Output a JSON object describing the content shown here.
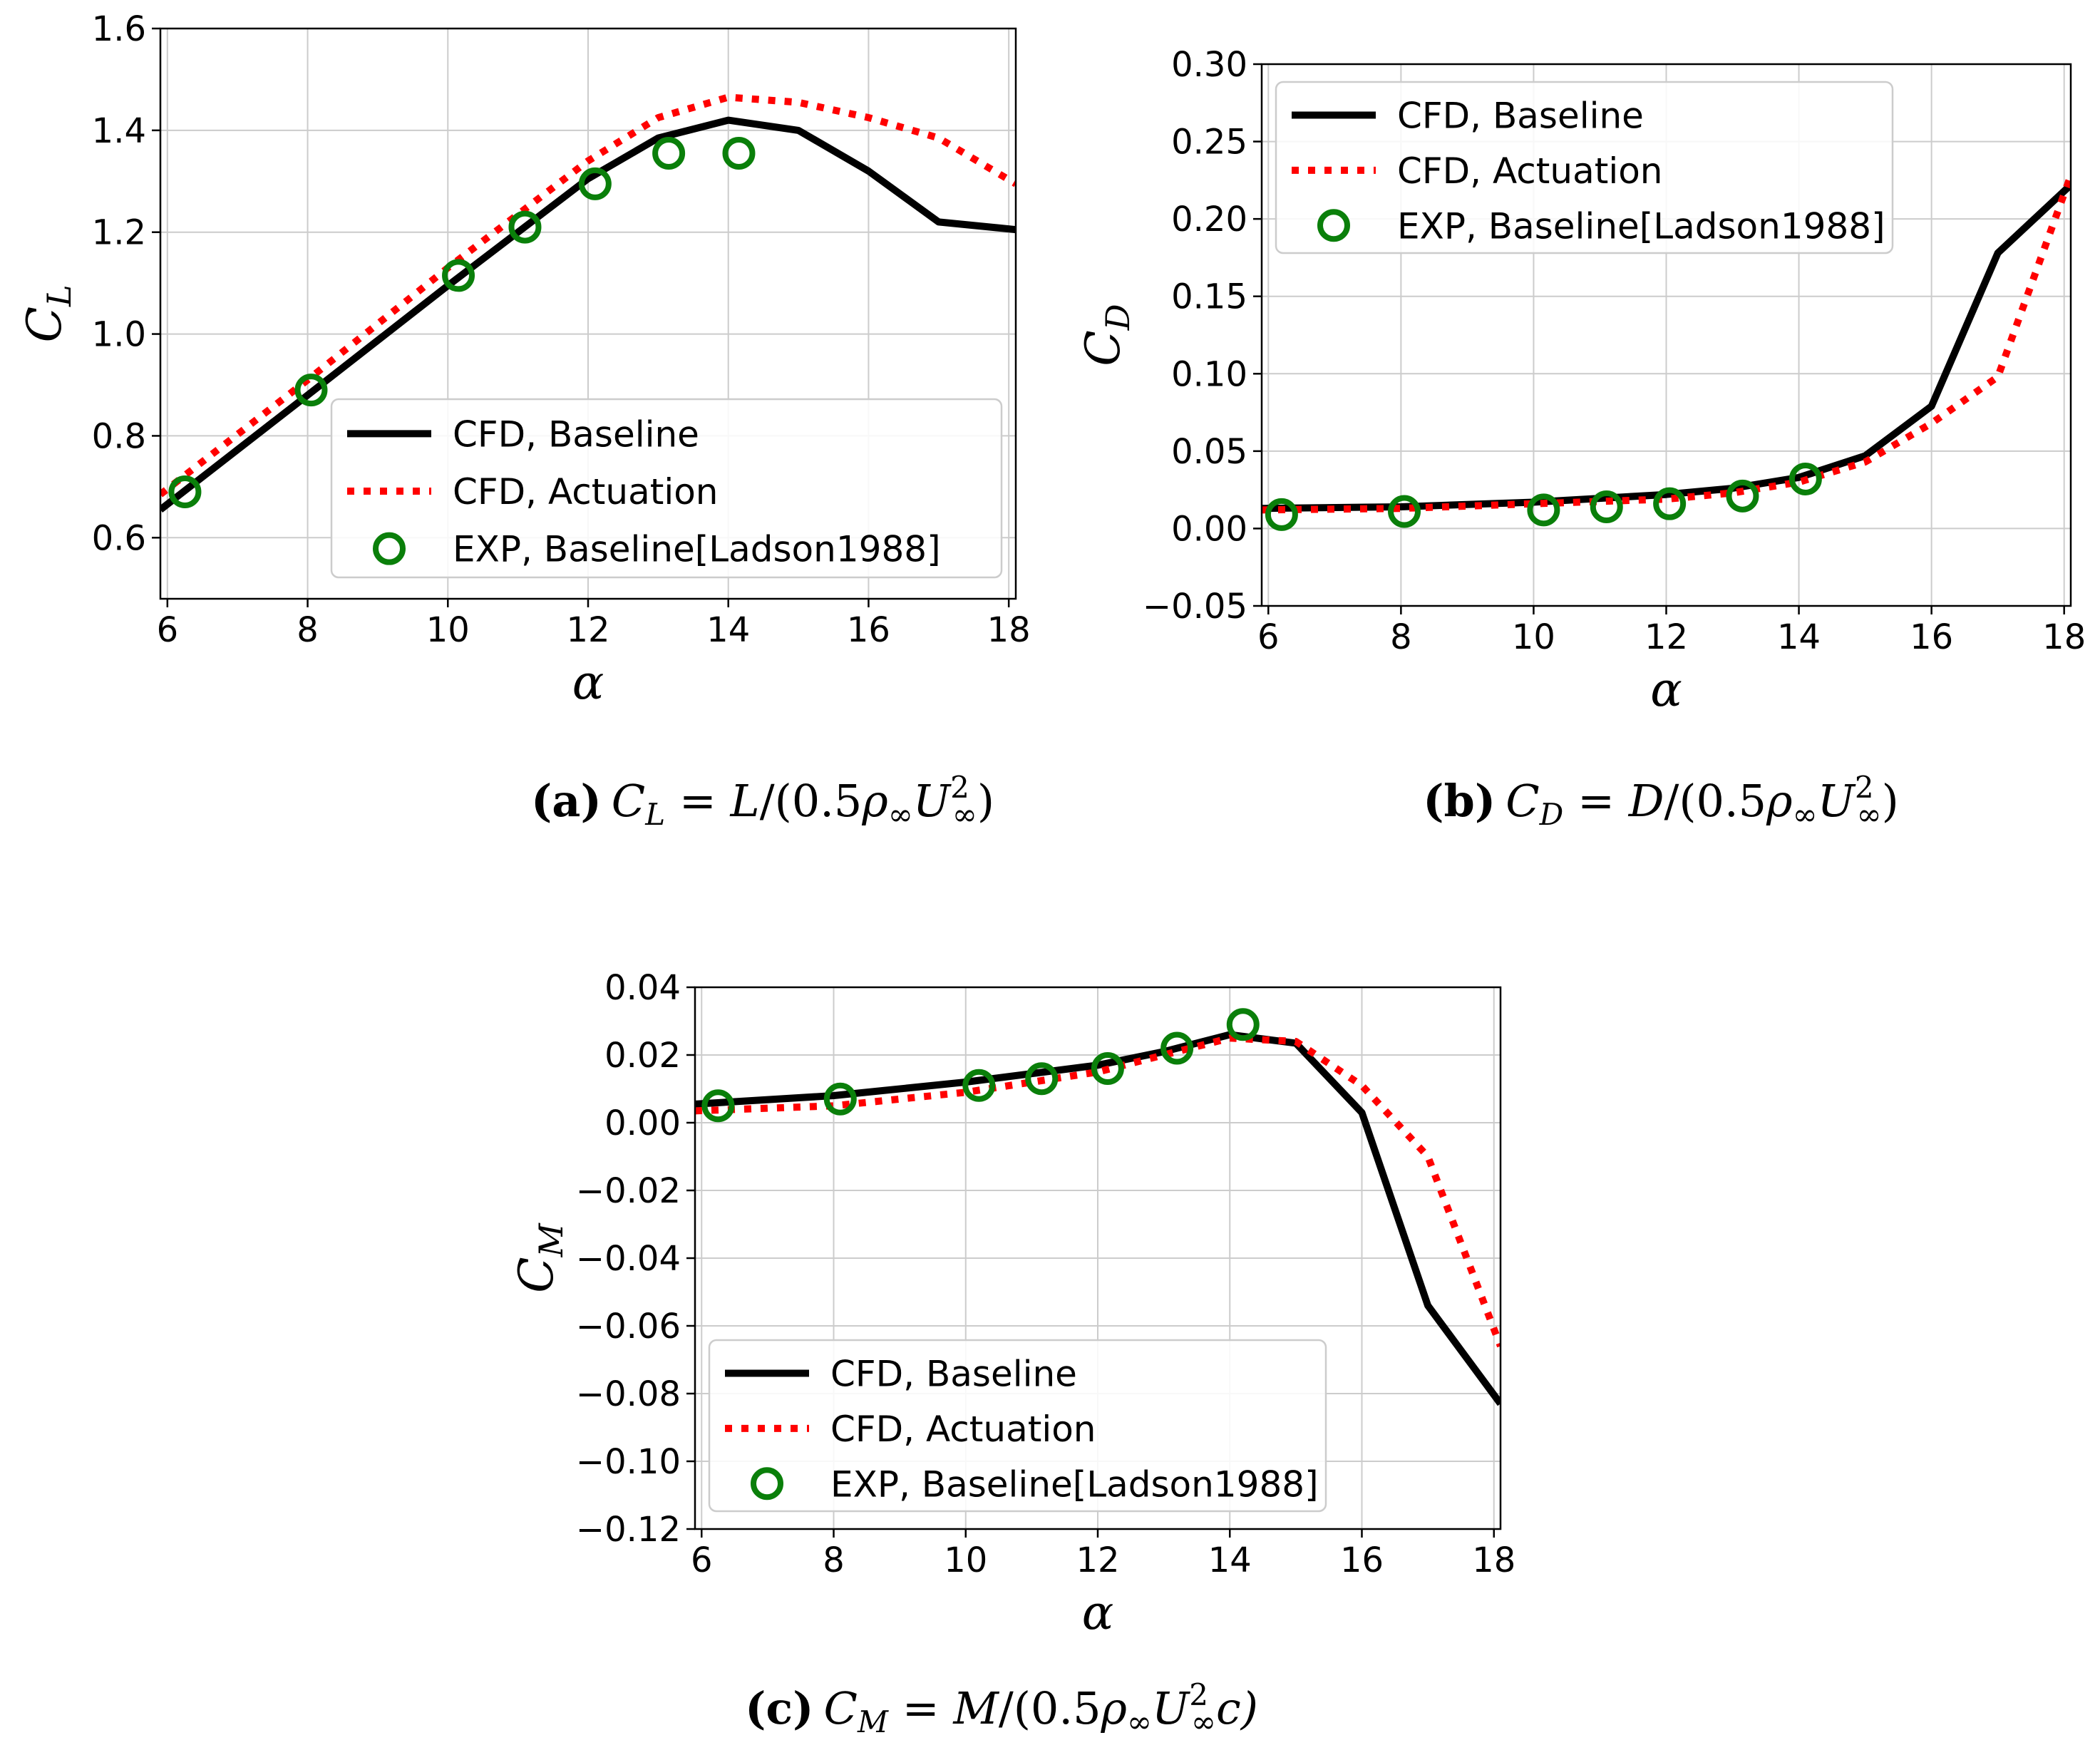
{
  "colors": {
    "baseline": "#000000",
    "actuation": "#ff0000",
    "experiment": "#0a7f0a",
    "grid": "#cccccc"
  },
  "chart_data": [
    {
      "id": "cl",
      "type": "line",
      "title": "",
      "xlabel": "α",
      "ylabel": "C_L",
      "ylabel_main": "C",
      "ylabel_sub": "L",
      "xlim": [
        5.9,
        18.1
      ],
      "ylim": [
        0.48,
        1.6
      ],
      "xticks": [
        6,
        8,
        10,
        12,
        14,
        16,
        18
      ],
      "xtick_labels": [
        "6",
        "8",
        "10",
        "12",
        "14",
        "16",
        "18"
      ],
      "yticks": [
        0.6,
        0.8,
        1.0,
        1.2,
        1.4,
        1.6
      ],
      "ytick_labels": [
        "0.6",
        "0.8",
        "1.0",
        "1.2",
        "1.4",
        "1.6"
      ],
      "legend_position": "lower-right",
      "legend_labels": [
        "CFD, Baseline",
        "CFD, Actuation",
        "EXP, Baseline[Ladson1988]"
      ],
      "grid": true,
      "series": [
        {
          "name": "CFD, Baseline",
          "style": "solid",
          "x": [
            5.9,
            8,
            10,
            12,
            13,
            14,
            15,
            16,
            17,
            18.1
          ],
          "y": [
            0.655,
            0.88,
            1.095,
            1.305,
            1.385,
            1.42,
            1.4,
            1.32,
            1.22,
            1.205
          ]
        },
        {
          "name": "CFD, Actuation",
          "style": "dotted",
          "x": [
            5.9,
            8,
            10,
            12,
            13,
            14,
            15,
            16,
            17,
            18.1
          ],
          "y": [
            0.685,
            0.91,
            1.13,
            1.34,
            1.425,
            1.465,
            1.455,
            1.425,
            1.385,
            1.295
          ]
        },
        {
          "name": "EXP, Baseline[Ladson1988]",
          "style": "marker",
          "x": [
            6.25,
            8.05,
            10.15,
            11.1,
            12.1,
            13.15,
            14.15
          ],
          "y": [
            0.69,
            0.89,
            1.115,
            1.21,
            1.295,
            1.355,
            1.355
          ]
        }
      ]
    },
    {
      "id": "cd",
      "type": "line",
      "title": "",
      "xlabel": "α",
      "ylabel": "C_D",
      "ylabel_main": "C",
      "ylabel_sub": "D",
      "xlim": [
        5.9,
        18.1
      ],
      "ylim": [
        -0.05,
        0.3
      ],
      "xticks": [
        6,
        8,
        10,
        12,
        14,
        16,
        18
      ],
      "xtick_labels": [
        "6",
        "8",
        "10",
        "12",
        "14",
        "16",
        "18"
      ],
      "yticks": [
        -0.05,
        0.0,
        0.05,
        0.1,
        0.15,
        0.2,
        0.25,
        0.3
      ],
      "ytick_labels": [
        "−0.05",
        "0.00",
        "0.05",
        "0.10",
        "0.15",
        "0.20",
        "0.25",
        "0.30"
      ],
      "legend_position": "upper-left",
      "legend_labels": [
        "CFD, Baseline",
        "CFD, Actuation",
        "EXP, Baseline[Ladson1988]"
      ],
      "grid": true,
      "series": [
        {
          "name": "CFD, Baseline",
          "style": "solid",
          "x": [
            5.9,
            8,
            10,
            12,
            13,
            14,
            15,
            16,
            17,
            18.1
          ],
          "y": [
            0.013,
            0.014,
            0.017,
            0.022,
            0.026,
            0.033,
            0.047,
            0.079,
            0.178,
            0.222
          ]
        },
        {
          "name": "CFD, Actuation",
          "style": "dotted",
          "x": [
            5.9,
            8,
            10,
            12,
            13,
            14,
            15,
            16,
            17,
            18.1
          ],
          "y": [
            0.012,
            0.013,
            0.016,
            0.019,
            0.023,
            0.03,
            0.043,
            0.068,
            0.098,
            0.228
          ]
        },
        {
          "name": "EXP, Baseline[Ladson1988]",
          "style": "marker",
          "x": [
            6.2,
            8.05,
            10.15,
            11.1,
            12.05,
            13.15,
            14.1
          ],
          "y": [
            0.009,
            0.011,
            0.012,
            0.014,
            0.016,
            0.021,
            0.032
          ]
        }
      ]
    },
    {
      "id": "cm",
      "type": "line",
      "title": "",
      "xlabel": "α",
      "ylabel": "C_M",
      "ylabel_main": "C",
      "ylabel_sub": "M",
      "xlim": [
        5.9,
        18.1
      ],
      "ylim": [
        -0.12,
        0.04
      ],
      "xticks": [
        6,
        8,
        10,
        12,
        14,
        16,
        18
      ],
      "xtick_labels": [
        "6",
        "8",
        "10",
        "12",
        "14",
        "16",
        "18"
      ],
      "yticks": [
        -0.12,
        -0.1,
        -0.08,
        -0.06,
        -0.04,
        -0.02,
        0.0,
        0.02,
        0.04
      ],
      "ytick_labels": [
        "−0.12",
        "−0.10",
        "−0.08",
        "−0.06",
        "−0.04",
        "−0.02",
        "0.00",
        "0.02",
        "0.04"
      ],
      "legend_position": "lower-left",
      "legend_labels": [
        "CFD, Baseline",
        "CFD, Actuation",
        "EXP, Baseline[Ladson1988]"
      ],
      "grid": true,
      "series": [
        {
          "name": "CFD, Baseline",
          "style": "solid",
          "x": [
            5.9,
            8,
            10,
            12,
            13,
            14,
            15,
            16,
            17,
            18.1
          ],
          "y": [
            0.0055,
            0.008,
            0.012,
            0.017,
            0.021,
            0.026,
            0.0235,
            0.003,
            -0.054,
            -0.083
          ]
        },
        {
          "name": "CFD, Actuation",
          "style": "dotted",
          "x": [
            5.9,
            8,
            10,
            12,
            13,
            14,
            15,
            16,
            17,
            18.1
          ],
          "y": [
            0.0035,
            0.005,
            0.009,
            0.015,
            0.02,
            0.025,
            0.024,
            0.011,
            -0.01,
            -0.066
          ]
        },
        {
          "name": "EXP, Baseline[Ladson1988]",
          "style": "marker",
          "x": [
            6.25,
            8.1,
            10.2,
            11.15,
            12.15,
            13.2,
            14.2
          ],
          "y": [
            0.005,
            0.007,
            0.011,
            0.013,
            0.016,
            0.022,
            0.029
          ]
        }
      ]
    }
  ],
  "captions": [
    {
      "letter": "(a)",
      "text": "C_L = L/(0.5ρ∞U∞²)",
      "lhs_main": "C",
      "lhs_sub": "L",
      "eq": " = ",
      "numerator": "L",
      "rest_open": "/(0.5",
      "rho": "ρ",
      "inf": "∞",
      "U": "U",
      "sq": "2",
      "close": ")"
    },
    {
      "letter": "(b)",
      "text": "C_D = D/(0.5ρ∞U∞²)",
      "lhs_main": "C",
      "lhs_sub": "D",
      "eq": " = ",
      "numerator": "D",
      "rest_open": "/(0.5",
      "rho": "ρ",
      "inf": "∞",
      "U": "U",
      "sq": "2",
      "close": ")"
    },
    {
      "letter": "(c)",
      "text": "C_M = M/(0.5ρ∞U∞²c)",
      "lhs_main": "C",
      "lhs_sub": "M",
      "eq": " = ",
      "numerator": "M",
      "rest_open": "/(0.5",
      "rho": "ρ",
      "inf": "∞",
      "U": "U",
      "sq": "2",
      "close": "c)"
    }
  ]
}
